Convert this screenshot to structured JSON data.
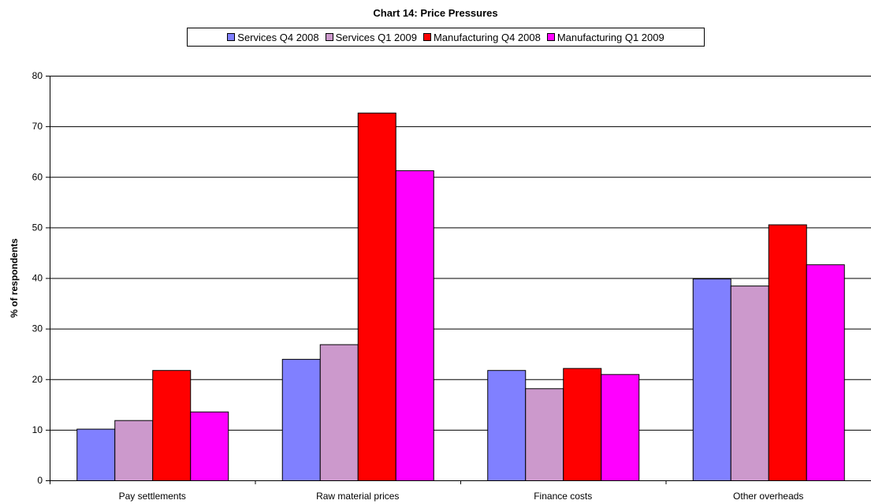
{
  "chart_data": {
    "type": "bar",
    "title": "Chart 14: Price Pressures",
    "xlabel": "",
    "ylabel": "% of respondents",
    "ylim": [
      0,
      80
    ],
    "yticks": [
      0,
      10,
      20,
      30,
      40,
      50,
      60,
      70,
      80
    ],
    "grid": true,
    "legend_position": "top",
    "categories": [
      "Pay settlements",
      "Raw material prices",
      "Finance costs",
      "Other overheads"
    ],
    "series": [
      {
        "name": "Services Q4 2008",
        "color": "#8080FF",
        "values": [
          10.2,
          24.0,
          21.8,
          39.9
        ]
      },
      {
        "name": "Services Q1 2009",
        "color": "#CC99CC",
        "values": [
          11.9,
          26.9,
          18.2,
          38.5
        ]
      },
      {
        "name": "Manufacturing Q4 2008",
        "color": "#FF0000",
        "values": [
          21.8,
          72.7,
          22.2,
          50.6
        ]
      },
      {
        "name": "Manufacturing Q1 2009",
        "color": "#FF00FF",
        "values": [
          13.6,
          61.3,
          21.0,
          42.7
        ]
      }
    ]
  }
}
